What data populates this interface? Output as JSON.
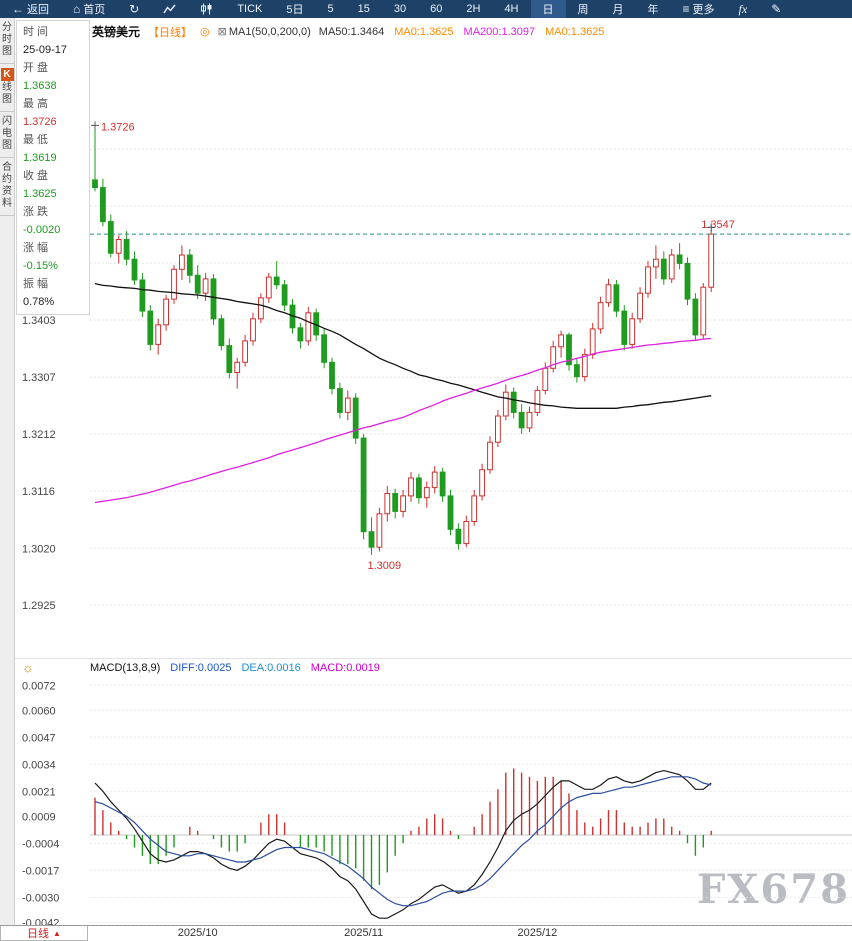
{
  "icons": {
    "back": "←",
    "home": "⌂",
    "refresh": "↻",
    "more": "≡",
    "pen": "✎",
    "gear": "☼",
    "indicator_settings": "◎",
    "ma_settings": "⊠",
    "dropdown_arrow": "▲"
  },
  "toolbar": {
    "items": [
      {
        "name": "back-button",
        "icon": "back",
        "label": "返回"
      },
      {
        "name": "home-button",
        "icon": "home",
        "label": "首页"
      },
      {
        "name": "refresh-button",
        "icon": "refresh",
        "label": ""
      },
      {
        "name": "line-chart-type-button",
        "icon": "line_chart",
        "label": ""
      },
      {
        "name": "candle-chart-type-button",
        "icon": "candle_chart",
        "label": ""
      },
      {
        "name": "interval-tick",
        "label": "TICK"
      },
      {
        "name": "interval-5d",
        "label": "5日"
      },
      {
        "name": "interval-5m",
        "label": "5"
      },
      {
        "name": "interval-15m",
        "label": "15"
      },
      {
        "name": "interval-30m",
        "label": "30"
      },
      {
        "name": "interval-60m",
        "label": "60"
      },
      {
        "name": "interval-2h",
        "label": "2H"
      },
      {
        "name": "interval-4h",
        "label": "4H"
      },
      {
        "name": "interval-daily",
        "label": "日",
        "active": true
      },
      {
        "name": "interval-weekly",
        "label": "周"
      },
      {
        "name": "interval-monthly",
        "label": "月"
      },
      {
        "name": "interval-yearly",
        "label": "年"
      },
      {
        "name": "more-button",
        "icon": "more",
        "label": "更多"
      },
      {
        "name": "indicators-button",
        "label": "fx",
        "italic": true
      },
      {
        "name": "draw-button",
        "icon": "pen",
        "label": ""
      }
    ]
  },
  "sidebar": {
    "tabs": [
      {
        "key": "time-share-chart",
        "label": "分时图"
      },
      {
        "key": "kline-chart",
        "label": "K线图",
        "active": true
      },
      {
        "key": "lightning-chart",
        "label": "闪电图"
      },
      {
        "key": "contract-info",
        "label": "合约资料"
      }
    ]
  },
  "info_panel": {
    "rows": [
      {
        "label": "时 间",
        "value": "25-09-17",
        "color": "black"
      },
      {
        "label": "开 盘",
        "value": "1.3638",
        "color": "green"
      },
      {
        "label": "最 高",
        "value": "1.3726",
        "color": "red"
      },
      {
        "label": "最 低",
        "value": "1.3619",
        "color": "green"
      },
      {
        "label": "收 盘",
        "value": "1.3625",
        "color": "green"
      },
      {
        "label": "涨 跌",
        "value": "-0.0020",
        "color": "green"
      },
      {
        "label": "涨 幅",
        "value": "-0.15%",
        "color": "green"
      },
      {
        "label": "振 幅",
        "value": "0.78%",
        "color": "black"
      }
    ]
  },
  "value_colors": {
    "green": "#1f9b1f",
    "red": "#d03030",
    "black": "#222222"
  },
  "chart_header": {
    "symbol": "英镑美元",
    "period_tag": "【日线】",
    "ma_settings": "MA1(50,0,200,0)",
    "ma_values": [
      {
        "label": "MA50:1.3464",
        "color": "#333333"
      },
      {
        "label": "MA0:1.3625",
        "color": "#ff8a00"
      },
      {
        "label": "MA200:1.3097",
        "color": "#e020e0"
      },
      {
        "label": "MA0:1.3625",
        "color": "#ff8a00"
      }
    ]
  },
  "macd_header": {
    "title": "MACD(13,8,9)",
    "values": [
      {
        "label": "DIFF:0.0025",
        "color": "#1a56c8"
      },
      {
        "label": "DEA:0.0016",
        "color": "#1a90d2"
      },
      {
        "label": "MACD:0.0019",
        "color": "#cc00cc"
      }
    ]
  },
  "bottom_bar": {
    "period_label": "日线"
  },
  "watermark": "FX678",
  "chart_data": {
    "type": "candlestick",
    "symbol": "英镑美元",
    "interval": "日线",
    "price_axis_ticks": [
      1.3403,
      1.3307,
      1.3212,
      1.3116,
      1.302,
      1.2925
    ],
    "price_grid_step": 0.00955,
    "current_price": 1.3547,
    "annotations": {
      "high_label": "1.3726",
      "low_label": "1.3009",
      "last_label": "1.3547"
    },
    "x_ticks": [
      {
        "index": 13,
        "label": "2025/10"
      },
      {
        "index": 34,
        "label": "2025/11"
      },
      {
        "index": 56,
        "label": "2025/12"
      }
    ],
    "candles": [
      [
        1.3638,
        1.3726,
        1.3619,
        1.3625
      ],
      [
        1.3625,
        1.364,
        1.356,
        1.3568
      ],
      [
        1.3568,
        1.358,
        1.3508,
        1.3515
      ],
      [
        1.3515,
        1.3545,
        1.3498,
        1.3538
      ],
      [
        1.3538,
        1.3552,
        1.3495,
        1.3505
      ],
      [
        1.3505,
        1.3518,
        1.3462,
        1.347
      ],
      [
        1.347,
        1.3482,
        1.3408,
        1.3418
      ],
      [
        1.3418,
        1.3428,
        1.3352,
        1.3362
      ],
      [
        1.3362,
        1.3405,
        1.3345,
        1.3395
      ],
      [
        1.3395,
        1.3445,
        1.3385,
        1.3438
      ],
      [
        1.3438,
        1.3495,
        1.343,
        1.3488
      ],
      [
        1.3488,
        1.3528,
        1.347,
        1.3512
      ],
      [
        1.3512,
        1.3522,
        1.3465,
        1.3478
      ],
      [
        1.3478,
        1.3495,
        1.3438,
        1.3448
      ],
      [
        1.3448,
        1.3482,
        1.3435,
        1.3472
      ],
      [
        1.3472,
        1.348,
        1.3395,
        1.3405
      ],
      [
        1.3405,
        1.3412,
        1.3352,
        1.336
      ],
      [
        1.336,
        1.3372,
        1.3305,
        1.3315
      ],
      [
        1.3315,
        1.334,
        1.3288,
        1.3332
      ],
      [
        1.3332,
        1.3378,
        1.3325,
        1.3368
      ],
      [
        1.3368,
        1.3415,
        1.336,
        1.3405
      ],
      [
        1.3405,
        1.3448,
        1.3398,
        1.344
      ],
      [
        1.344,
        1.3482,
        1.3432,
        1.3475
      ],
      [
        1.3475,
        1.3502,
        1.3455,
        1.3462
      ],
      [
        1.3462,
        1.347,
        1.3418,
        1.3428
      ],
      [
        1.3428,
        1.3438,
        1.338,
        1.339
      ],
      [
        1.339,
        1.3398,
        1.3355,
        1.3368
      ],
      [
        1.3368,
        1.3425,
        1.336,
        1.3415
      ],
      [
        1.3415,
        1.3422,
        1.3368,
        1.3378
      ],
      [
        1.3378,
        1.3388,
        1.3322,
        1.3332
      ],
      [
        1.3332,
        1.334,
        1.3278,
        1.3288
      ],
      [
        1.3288,
        1.3298,
        1.3238,
        1.3248
      ],
      [
        1.3248,
        1.3285,
        1.3235,
        1.3272
      ],
      [
        1.3272,
        1.328,
        1.3195,
        1.3205
      ],
      [
        1.3205,
        1.3212,
        1.3035,
        1.3048
      ],
      [
        1.3048,
        1.3072,
        1.3009,
        1.3022
      ],
      [
        1.3022,
        1.3088,
        1.3015,
        1.3078
      ],
      [
        1.3078,
        1.3125,
        1.3065,
        1.3112
      ],
      [
        1.3112,
        1.312,
        1.307,
        1.3082
      ],
      [
        1.3082,
        1.3118,
        1.3072,
        1.3108
      ],
      [
        1.3108,
        1.3148,
        1.3098,
        1.3138
      ],
      [
        1.3138,
        1.3145,
        1.3095,
        1.3105
      ],
      [
        1.3105,
        1.3132,
        1.3088,
        1.3122
      ],
      [
        1.3122,
        1.3158,
        1.3112,
        1.3148
      ],
      [
        1.3148,
        1.3155,
        1.3098,
        1.3108
      ],
      [
        1.3108,
        1.3118,
        1.3042,
        1.3052
      ],
      [
        1.3052,
        1.3062,
        1.3018,
        1.3028
      ],
      [
        1.3028,
        1.3075,
        1.3022,
        1.3065
      ],
      [
        1.3065,
        1.3118,
        1.3058,
        1.3108
      ],
      [
        1.3108,
        1.3162,
        1.31,
        1.3152
      ],
      [
        1.3152,
        1.3208,
        1.3145,
        1.3198
      ],
      [
        1.3198,
        1.3252,
        1.319,
        1.3242
      ],
      [
        1.3242,
        1.3295,
        1.3235,
        1.3282
      ],
      [
        1.3282,
        1.329,
        1.3238,
        1.3248
      ],
      [
        1.3248,
        1.3262,
        1.3212,
        1.3222
      ],
      [
        1.3222,
        1.3258,
        1.3215,
        1.3248
      ],
      [
        1.3248,
        1.3292,
        1.3242,
        1.3285
      ],
      [
        1.3285,
        1.3332,
        1.3278,
        1.3322
      ],
      [
        1.3322,
        1.3368,
        1.3315,
        1.3358
      ],
      [
        1.3358,
        1.3385,
        1.334,
        1.3378
      ],
      [
        1.3378,
        1.3382,
        1.3318,
        1.3328
      ],
      [
        1.3328,
        1.3338,
        1.3298,
        1.3308
      ],
      [
        1.3308,
        1.3355,
        1.33,
        1.3345
      ],
      [
        1.3345,
        1.3398,
        1.3338,
        1.3388
      ],
      [
        1.3388,
        1.3442,
        1.338,
        1.3432
      ],
      [
        1.3432,
        1.3472,
        1.3425,
        1.3462
      ],
      [
        1.3462,
        1.347,
        1.3408,
        1.3418
      ],
      [
        1.3418,
        1.3428,
        1.3352,
        1.3362
      ],
      [
        1.3362,
        1.3415,
        1.3355,
        1.3405
      ],
      [
        1.3405,
        1.3458,
        1.3398,
        1.3448
      ],
      [
        1.3448,
        1.3502,
        1.344,
        1.3492
      ],
      [
        1.3492,
        1.3528,
        1.3472,
        1.3505
      ],
      [
        1.3505,
        1.3518,
        1.3462,
        1.3472
      ],
      [
        1.3472,
        1.3522,
        1.3465,
        1.3512
      ],
      [
        1.3512,
        1.3532,
        1.3488,
        1.3498
      ],
      [
        1.3498,
        1.3508,
        1.3428,
        1.3438
      ],
      [
        1.3438,
        1.3448,
        1.3368,
        1.3378
      ],
      [
        1.3378,
        1.3465,
        1.3372,
        1.3458
      ],
      [
        1.3458,
        1.3555,
        1.345,
        1.3547
      ]
    ],
    "overlays": {
      "ma50": [
        1.3464,
        1.3461,
        1.346,
        1.3458,
        1.3457,
        1.3456,
        1.3454,
        1.3453,
        1.3451,
        1.345,
        1.3449,
        1.3447,
        1.3446,
        1.3445,
        1.3443,
        1.3441,
        1.3439,
        1.3437,
        1.3434,
        1.3432,
        1.343,
        1.3428,
        1.3424,
        1.3419,
        1.3415,
        1.341,
        1.3406,
        1.34,
        1.3395,
        1.3389,
        1.3384,
        1.3378,
        1.337,
        1.3362,
        1.3355,
        1.3347,
        1.3339,
        1.3333,
        1.3328,
        1.3322,
        1.3317,
        1.3311,
        1.3308,
        1.3304,
        1.3301,
        1.3297,
        1.3294,
        1.329,
        1.3286,
        1.3282,
        1.3278,
        1.3274,
        1.3272,
        1.3269,
        1.3267,
        1.3264,
        1.3262,
        1.326,
        1.3259,
        1.3257,
        1.3256,
        1.3255,
        1.3255,
        1.3255,
        1.3255,
        1.3255,
        1.3255,
        1.3257,
        1.3258,
        1.326,
        1.3261,
        1.3263,
        1.3265,
        1.3266,
        1.3268,
        1.327,
        1.3272,
        1.3274,
        1.3276
      ],
      "ma200": [
        1.3097,
        1.3099,
        1.3101,
        1.3103,
        1.3105,
        1.3108,
        1.3111,
        1.3114,
        1.3118,
        1.3122,
        1.3126,
        1.313,
        1.3133,
        1.3137,
        1.3141,
        1.3145,
        1.3149,
        1.3153,
        1.3156,
        1.316,
        1.3164,
        1.3168,
        1.3172,
        1.3177,
        1.3181,
        1.3185,
        1.3189,
        1.3193,
        1.3197,
        1.3202,
        1.3206,
        1.321,
        1.3214,
        1.3218,
        1.3222,
        1.3225,
        1.3229,
        1.3233,
        1.3236,
        1.324,
        1.3245,
        1.3251,
        1.3256,
        1.3261,
        1.3267,
        1.3272,
        1.3276,
        1.328,
        1.3285,
        1.3289,
        1.3293,
        1.3297,
        1.3302,
        1.3306,
        1.331,
        1.3314,
        1.3319,
        1.3323,
        1.3328,
        1.3332,
        1.3335,
        1.3339,
        1.3342,
        1.3346,
        1.3349,
        1.3351,
        1.3353,
        1.3355,
        1.3357,
        1.3359,
        1.3361,
        1.3362,
        1.3364,
        1.3365,
        1.3367,
        1.3368,
        1.3369,
        1.3371,
        1.3372
      ]
    },
    "macd": {
      "params": "13,8,9",
      "histogram_formula": "2*(diff-dea)",
      "axis_ticks": [
        0.0072,
        0.006,
        0.0047,
        0.0034,
        0.0021,
        0.0009,
        -0.0004,
        -0.0017,
        -0.003,
        -0.0042
      ],
      "diff": [
        0.0025,
        0.0021,
        0.0016,
        0.0012,
        0.0008,
        0.0003,
        -0.0003,
        -0.0009,
        -0.0012,
        -0.0013,
        -0.0012,
        -0.001,
        -0.0008,
        -0.0008,
        -0.0009,
        -0.0011,
        -0.0014,
        -0.0016,
        -0.0017,
        -0.0015,
        -0.0012,
        -0.0008,
        -0.0004,
        -0.0002,
        -0.0003,
        -0.0006,
        -0.0009,
        -0.001,
        -0.0011,
        -0.0013,
        -0.0016,
        -0.002,
        -0.0022,
        -0.0026,
        -0.0032,
        -0.0038,
        -0.004,
        -0.004,
        -0.0038,
        -0.0036,
        -0.0033,
        -0.0031,
        -0.0028,
        -0.0025,
        -0.0024,
        -0.0026,
        -0.0028,
        -0.0027,
        -0.0024,
        -0.0019,
        -0.0013,
        -0.0006,
        0.0002,
        0.0007,
        0.001,
        0.0012,
        0.0015,
        0.0019,
        0.0023,
        0.0026,
        0.0026,
        0.0024,
        0.0022,
        0.0022,
        0.0024,
        0.0027,
        0.0028,
        0.0026,
        0.0025,
        0.0026,
        0.0028,
        0.003,
        0.0031,
        0.003,
        0.0029,
        0.0026,
        0.0022,
        0.0022,
        0.0025
      ],
      "dea": [
        0.0016,
        0.0015,
        0.0013,
        0.0011,
        0.0009,
        0.0006,
        0.0002,
        -0.0002,
        -0.0005,
        -0.0008,
        -0.0009,
        -0.001,
        -0.001,
        -0.0009,
        -0.0009,
        -0.001,
        -0.0011,
        -0.0012,
        -0.0013,
        -0.0013,
        -0.0012,
        -0.0011,
        -0.0009,
        -0.0007,
        -0.0006,
        -0.0006,
        -0.0006,
        -0.0007,
        -0.0008,
        -0.0009,
        -0.0011,
        -0.0013,
        -0.0015,
        -0.0018,
        -0.0021,
        -0.0025,
        -0.0028,
        -0.0031,
        -0.0033,
        -0.0034,
        -0.0034,
        -0.0033,
        -0.0032,
        -0.003,
        -0.0028,
        -0.0027,
        -0.0027,
        -0.0027,
        -0.0026,
        -0.0024,
        -0.0021,
        -0.0017,
        -0.0013,
        -0.0009,
        -0.0005,
        -0.0002,
        0.0002,
        0.0005,
        0.0009,
        0.0013,
        0.0016,
        0.0018,
        0.0019,
        0.002,
        0.002,
        0.0021,
        0.0022,
        0.0023,
        0.0023,
        0.0024,
        0.0025,
        0.0026,
        0.0027,
        0.0028,
        0.0028,
        0.0028,
        0.0027,
        0.0025,
        0.0024
      ]
    },
    "colors": {
      "up": "#d03030",
      "down": "#1f9b1f",
      "ma50": "#111111",
      "ma200": "#e020e0",
      "diff_line": "#1a1a1a",
      "dea_line": "#2a4d9e",
      "current_price_line": "#2a8f8f"
    }
  }
}
